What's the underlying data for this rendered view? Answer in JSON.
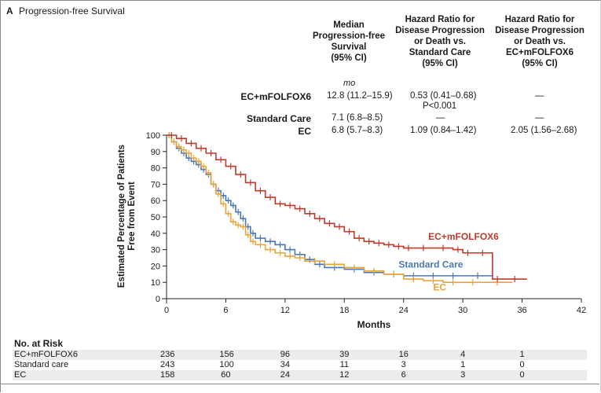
{
  "panel": {
    "letter": "A",
    "title": "Progression-free Survival"
  },
  "table": {
    "headers": [
      [
        "Median",
        "Progression-free",
        "Survival",
        "(95% CI)"
      ],
      [
        "Hazard Ratio for",
        "Disease Progression",
        "or Death vs.",
        "Standard Care",
        "(95% CI)"
      ],
      [
        "Hazard Ratio for",
        "Disease Progression",
        "or Death vs.",
        "EC+mFOLFOX6",
        "(95% CI)"
      ]
    ],
    "unit": "mo",
    "rows": [
      {
        "label": "EC+mFOLFOX6",
        "median": "12.8 (11.2–15.9)",
        "hr_sc": "0.53 (0.41–0.68)",
        "hr_sc_p": "P<0.001",
        "hr_ec": "—"
      },
      {
        "label": "Standard Care",
        "median": "7.1 (6.8–8.5)",
        "hr_sc": "—",
        "hr_ec": "—"
      },
      {
        "label": "EC",
        "median": "6.8 (5.7–8.3)",
        "hr_sc": "1.09 (0.84–1.42)",
        "hr_ec": "2.05 (1.56–2.68)"
      }
    ]
  },
  "colors": {
    "ec_mfolfox6": "#c0392b",
    "standard_care": "#4a78b5",
    "ec": "#e8a33a",
    "axis": "#222222"
  },
  "chart_data": {
    "type": "line",
    "title": "Progression-free Survival",
    "xlabel": "Months",
    "ylabel": [
      "Estimated Percentage of Patients",
      "Free from Event"
    ],
    "xlim": [
      0,
      42
    ],
    "ylim": [
      0,
      100
    ],
    "xticks": [
      0,
      6,
      12,
      18,
      24,
      30,
      36,
      42
    ],
    "yticks": [
      0,
      10,
      20,
      30,
      40,
      50,
      60,
      70,
      80,
      90,
      100
    ],
    "series": [
      {
        "name": "Standard Care",
        "key": "standard_care",
        "label": "Standard Care",
        "x": [
          0,
          0.5,
          1,
          1.5,
          2,
          2.5,
          3,
          3.5,
          4,
          4.5,
          5,
          5.5,
          6,
          6.5,
          7,
          7.5,
          8,
          8.5,
          9,
          10,
          11,
          12,
          13,
          14,
          15,
          16,
          18,
          20,
          22,
          24,
          26,
          28,
          30,
          33
        ],
        "y": [
          100,
          96,
          92,
          89,
          86,
          84,
          82,
          79,
          76,
          70,
          66,
          63,
          60,
          57,
          53,
          49,
          44,
          40,
          37,
          35,
          33,
          30,
          27,
          24,
          21,
          19,
          18,
          16,
          15,
          14,
          14,
          14,
          14,
          14
        ]
      },
      {
        "name": "EC",
        "key": "ec",
        "label": "EC",
        "x": [
          0,
          0.5,
          1,
          1.5,
          2,
          2.5,
          3,
          3.5,
          4,
          4.5,
          5,
          5.5,
          6,
          6.5,
          7,
          7.5,
          8,
          8.5,
          9,
          10,
          11,
          12,
          13,
          14,
          16,
          18,
          20,
          22,
          24,
          26,
          28,
          30,
          32,
          35
        ],
        "y": [
          100,
          96,
          93,
          91,
          89,
          86,
          84,
          81,
          77,
          70,
          64,
          58,
          52,
          47,
          45,
          44,
          39,
          35,
          33,
          30,
          28,
          26,
          25,
          23,
          21,
          19,
          17,
          15,
          12,
          11,
          10,
          10,
          10,
          10
        ]
      },
      {
        "name": "EC+mFOLFOX6",
        "key": "ec_mfolfox6",
        "label": "EC+mFOLFOX6",
        "x": [
          0,
          1,
          2,
          3,
          4,
          5,
          6,
          7,
          8,
          9,
          10,
          11,
          12,
          13,
          14,
          15,
          16,
          17,
          18,
          19,
          20,
          21,
          22,
          23,
          24,
          25,
          27,
          29,
          30,
          31,
          33,
          34,
          36.5
        ],
        "y": [
          100,
          98,
          95,
          92,
          89,
          85,
          81,
          76,
          71,
          66,
          62,
          58,
          57,
          55,
          52,
          49,
          46,
          44,
          41,
          37,
          35,
          34,
          33,
          32,
          31,
          31,
          31,
          30,
          28,
          28,
          12,
          12,
          12
        ]
      }
    ],
    "series_labels_position": "right of curves",
    "risk_table": {
      "title": "No. at Risk",
      "timepoints": [
        0,
        6,
        12,
        18,
        24,
        30,
        36
      ],
      "rows": [
        {
          "name": "EC+mFOLFOX6",
          "values": [
            "236",
            "156",
            "96",
            "39",
            "16",
            "4",
            "1"
          ]
        },
        {
          "name": "Standard care",
          "values": [
            "243",
            "100",
            "34",
            "11",
            "3",
            "1",
            "0"
          ]
        },
        {
          "name": "EC",
          "values": [
            "158",
            "60",
            "24",
            "12",
            "6",
            "3",
            "0"
          ]
        }
      ]
    }
  }
}
